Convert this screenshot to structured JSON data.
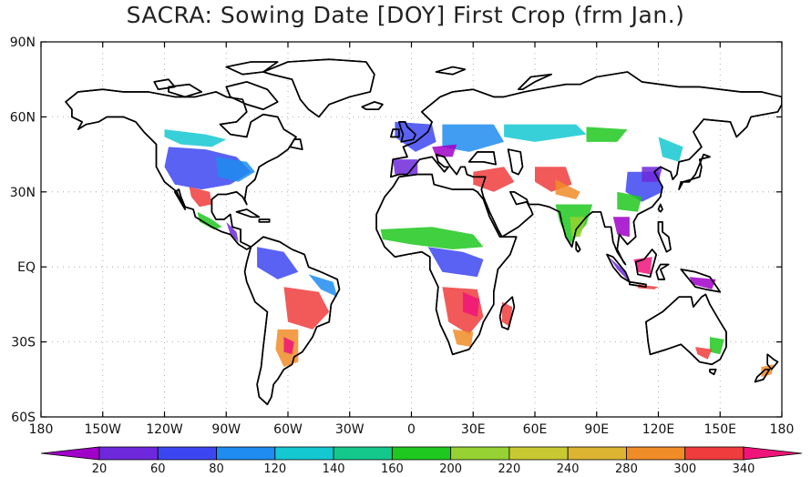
{
  "title": "SACRA: Sowing Date [DOY] First Crop (frm Jan.)",
  "map": {
    "lat_ticks": [
      "90N",
      "60N",
      "30N",
      "EQ",
      "30S",
      "60S"
    ],
    "lon_ticks": [
      "180",
      "150W",
      "120W",
      "90W",
      "60W",
      "30W",
      "0",
      "30E",
      "60E",
      "90E",
      "120E",
      "150E",
      "180"
    ],
    "grid": "dotted",
    "land_fill": "#ffffff",
    "coast_color": "#000000"
  },
  "colorbar": {
    "labels": [
      "20",
      "60",
      "80",
      "120",
      "140",
      "160",
      "200",
      "220",
      "240",
      "280",
      "300",
      "340"
    ],
    "colors": [
      "#a000c8",
      "#6e28dc",
      "#3c46f0",
      "#1e8cf0",
      "#14c8d2",
      "#14c88c",
      "#1ec81e",
      "#96d232",
      "#c8c832",
      "#dcb432",
      "#f08c28",
      "#f03c3c",
      "#f0147a"
    ]
  },
  "patches": [
    {
      "c": "#3c46f0",
      "p": [
        [
          -118,
          48
        ],
        [
          -100,
          47
        ],
        [
          -85,
          44
        ],
        [
          -78,
          38
        ],
        [
          -88,
          33
        ],
        [
          -102,
          31
        ],
        [
          -115,
          33
        ],
        [
          -120,
          40
        ]
      ]
    },
    {
      "c": "#14c8d2",
      "p": [
        [
          -120,
          55
        ],
        [
          -100,
          53
        ],
        [
          -90,
          51
        ],
        [
          -97,
          48
        ],
        [
          -112,
          49
        ],
        [
          -120,
          52
        ]
      ]
    },
    {
      "c": "#1e8cf0",
      "p": [
        [
          -95,
          44
        ],
        [
          -80,
          42
        ],
        [
          -76,
          38
        ],
        [
          -84,
          34
        ],
        [
          -94,
          36
        ]
      ]
    },
    {
      "c": "#f03c3c",
      "p": [
        [
          -108,
          32
        ],
        [
          -98,
          30
        ],
        [
          -97,
          25
        ],
        [
          -103,
          24
        ],
        [
          -107,
          28
        ]
      ]
    },
    {
      "c": "#1ec81e",
      "p": [
        [
          -104,
          22
        ],
        [
          -97,
          19
        ],
        [
          -92,
          16
        ],
        [
          -96,
          15
        ],
        [
          -103,
          18
        ]
      ]
    },
    {
      "c": "#6e28dc",
      "p": [
        [
          -90,
          18
        ],
        [
          -85,
          14
        ],
        [
          -84,
          10
        ],
        [
          -88,
          13
        ]
      ]
    },
    {
      "c": "#3c46f0",
      "p": [
        [
          -75,
          8
        ],
        [
          -62,
          6
        ],
        [
          -55,
          -2
        ],
        [
          -65,
          -5
        ],
        [
          -75,
          0
        ]
      ]
    },
    {
      "c": "#f03c3c",
      "p": [
        [
          -62,
          -8
        ],
        [
          -45,
          -10
        ],
        [
          -40,
          -18
        ],
        [
          -48,
          -25
        ],
        [
          -60,
          -22
        ]
      ]
    },
    {
      "c": "#f08c28",
      "p": [
        [
          -65,
          -25
        ],
        [
          -55,
          -25
        ],
        [
          -55,
          -38
        ],
        [
          -62,
          -40
        ],
        [
          -66,
          -33
        ]
      ]
    },
    {
      "c": "#f0147a",
      "p": [
        [
          -62,
          -28
        ],
        [
          -57,
          -30
        ],
        [
          -58,
          -35
        ],
        [
          -62,
          -34
        ]
      ]
    },
    {
      "c": "#1e8cf0",
      "p": [
        [
          -50,
          -3
        ],
        [
          -38,
          -6
        ],
        [
          -36,
          -12
        ],
        [
          -44,
          -9
        ]
      ]
    },
    {
      "c": "#1ec81e",
      "p": [
        [
          -15,
          15
        ],
        [
          10,
          16
        ],
        [
          30,
          13
        ],
        [
          35,
          8
        ],
        [
          20,
          7
        ],
        [
          0,
          9
        ],
        [
          -14,
          11
        ]
      ]
    },
    {
      "c": "#3c46f0",
      "p": [
        [
          8,
          8
        ],
        [
          25,
          6
        ],
        [
          35,
          3
        ],
        [
          32,
          -4
        ],
        [
          15,
          -2
        ]
      ]
    },
    {
      "c": "#f03c3c",
      "p": [
        [
          15,
          -8
        ],
        [
          32,
          -9
        ],
        [
          35,
          -20
        ],
        [
          28,
          -27
        ],
        [
          18,
          -22
        ]
      ]
    },
    {
      "c": "#f0147a",
      "p": [
        [
          25,
          -10
        ],
        [
          33,
          -13
        ],
        [
          32,
          -20
        ],
        [
          25,
          -18
        ]
      ]
    },
    {
      "c": "#f08c28",
      "p": [
        [
          20,
          -25
        ],
        [
          30,
          -26
        ],
        [
          29,
          -32
        ],
        [
          22,
          -31
        ]
      ]
    },
    {
      "c": "#f03c3c",
      "p": [
        [
          44,
          -14
        ],
        [
          49,
          -16
        ],
        [
          48,
          -24
        ],
        [
          44,
          -22
        ]
      ]
    },
    {
      "c": "#3c46f0",
      "p": [
        [
          -8,
          58
        ],
        [
          10,
          57
        ],
        [
          12,
          50
        ],
        [
          2,
          46
        ],
        [
          -8,
          52
        ]
      ]
    },
    {
      "c": "#6e28dc",
      "p": [
        [
          -9,
          43
        ],
        [
          3,
          43
        ],
        [
          3,
          37
        ],
        [
          -8,
          37
        ]
      ]
    },
    {
      "c": "#1e8cf0",
      "p": [
        [
          15,
          57
        ],
        [
          40,
          57
        ],
        [
          45,
          50
        ],
        [
          28,
          46
        ],
        [
          15,
          48
        ]
      ]
    },
    {
      "c": "#a000c8",
      "p": [
        [
          10,
          48
        ],
        [
          22,
          49
        ],
        [
          20,
          44
        ],
        [
          12,
          44
        ]
      ]
    },
    {
      "c": "#14c8d2",
      "p": [
        [
          45,
          57
        ],
        [
          80,
          57
        ],
        [
          85,
          53
        ],
        [
          60,
          50
        ],
        [
          45,
          52
        ]
      ]
    },
    {
      "c": "#1ec81e",
      "p": [
        [
          85,
          56
        ],
        [
          105,
          55
        ],
        [
          100,
          50
        ],
        [
          85,
          50
        ]
      ]
    },
    {
      "c": "#f03c3c",
      "p": [
        [
          30,
          38
        ],
        [
          45,
          40
        ],
        [
          50,
          34
        ],
        [
          40,
          30
        ],
        [
          30,
          33
        ]
      ]
    },
    {
      "c": "#f03c3c",
      "p": [
        [
          60,
          40
        ],
        [
          75,
          40
        ],
        [
          78,
          33
        ],
        [
          68,
          30
        ],
        [
          60,
          34
        ]
      ]
    },
    {
      "c": "#f08c28",
      "p": [
        [
          70,
          35
        ],
        [
          82,
          30
        ],
        [
          80,
          27
        ],
        [
          70,
          29
        ]
      ]
    },
    {
      "c": "#1ec81e",
      "p": [
        [
          70,
          25
        ],
        [
          88,
          25
        ],
        [
          85,
          17
        ],
        [
          77,
          9
        ],
        [
          72,
          18
        ]
      ]
    },
    {
      "c": "#96d232",
      "p": [
        [
          77,
          20
        ],
        [
          85,
          20
        ],
        [
          82,
          12
        ],
        [
          78,
          12
        ]
      ]
    },
    {
      "c": "#3c46f0",
      "p": [
        [
          105,
          38
        ],
        [
          120,
          38
        ],
        [
          122,
          30
        ],
        [
          112,
          26
        ],
        [
          104,
          30
        ]
      ]
    },
    {
      "c": "#1ec81e",
      "p": [
        [
          100,
          30
        ],
        [
          112,
          28
        ],
        [
          110,
          22
        ],
        [
          100,
          23
        ]
      ]
    },
    {
      "c": "#6e28dc",
      "p": [
        [
          112,
          40
        ],
        [
          122,
          40
        ],
        [
          120,
          34
        ],
        [
          112,
          34
        ]
      ]
    },
    {
      "c": "#14c8d2",
      "p": [
        [
          120,
          52
        ],
        [
          132,
          48
        ],
        [
          130,
          42
        ],
        [
          122,
          44
        ]
      ]
    },
    {
      "c": "#a000c8",
      "p": [
        [
          98,
          20
        ],
        [
          106,
          20
        ],
        [
          106,
          12
        ],
        [
          100,
          13
        ]
      ]
    },
    {
      "c": "#6e28dc",
      "p": [
        [
          96,
          4
        ],
        [
          104,
          -2
        ],
        [
          106,
          -6
        ],
        [
          100,
          -1
        ]
      ]
    },
    {
      "c": "#f0147a",
      "p": [
        [
          108,
          3
        ],
        [
          117,
          4
        ],
        [
          116,
          -3
        ],
        [
          110,
          -2
        ]
      ]
    },
    {
      "c": "#f03c3c",
      "p": [
        [
          110,
          -7
        ],
        [
          120,
          -8
        ],
        [
          118,
          -9
        ],
        [
          110,
          -8.5
        ]
      ]
    },
    {
      "c": "#a000c8",
      "p": [
        [
          135,
          -4
        ],
        [
          148,
          -5
        ],
        [
          146,
          -9
        ],
        [
          137,
          -7
        ]
      ]
    },
    {
      "c": "#1ec81e",
      "p": [
        [
          145,
          -28
        ],
        [
          152,
          -29
        ],
        [
          150,
          -35
        ],
        [
          145,
          -34
        ]
      ]
    },
    {
      "c": "#f03c3c",
      "p": [
        [
          138,
          -32
        ],
        [
          146,
          -33
        ],
        [
          144,
          -37
        ],
        [
          139,
          -35
        ]
      ]
    },
    {
      "c": "#f08c28",
      "p": [
        [
          170,
          -40
        ],
        [
          176,
          -39
        ],
        [
          175,
          -43
        ],
        [
          170,
          -44
        ]
      ]
    }
  ]
}
